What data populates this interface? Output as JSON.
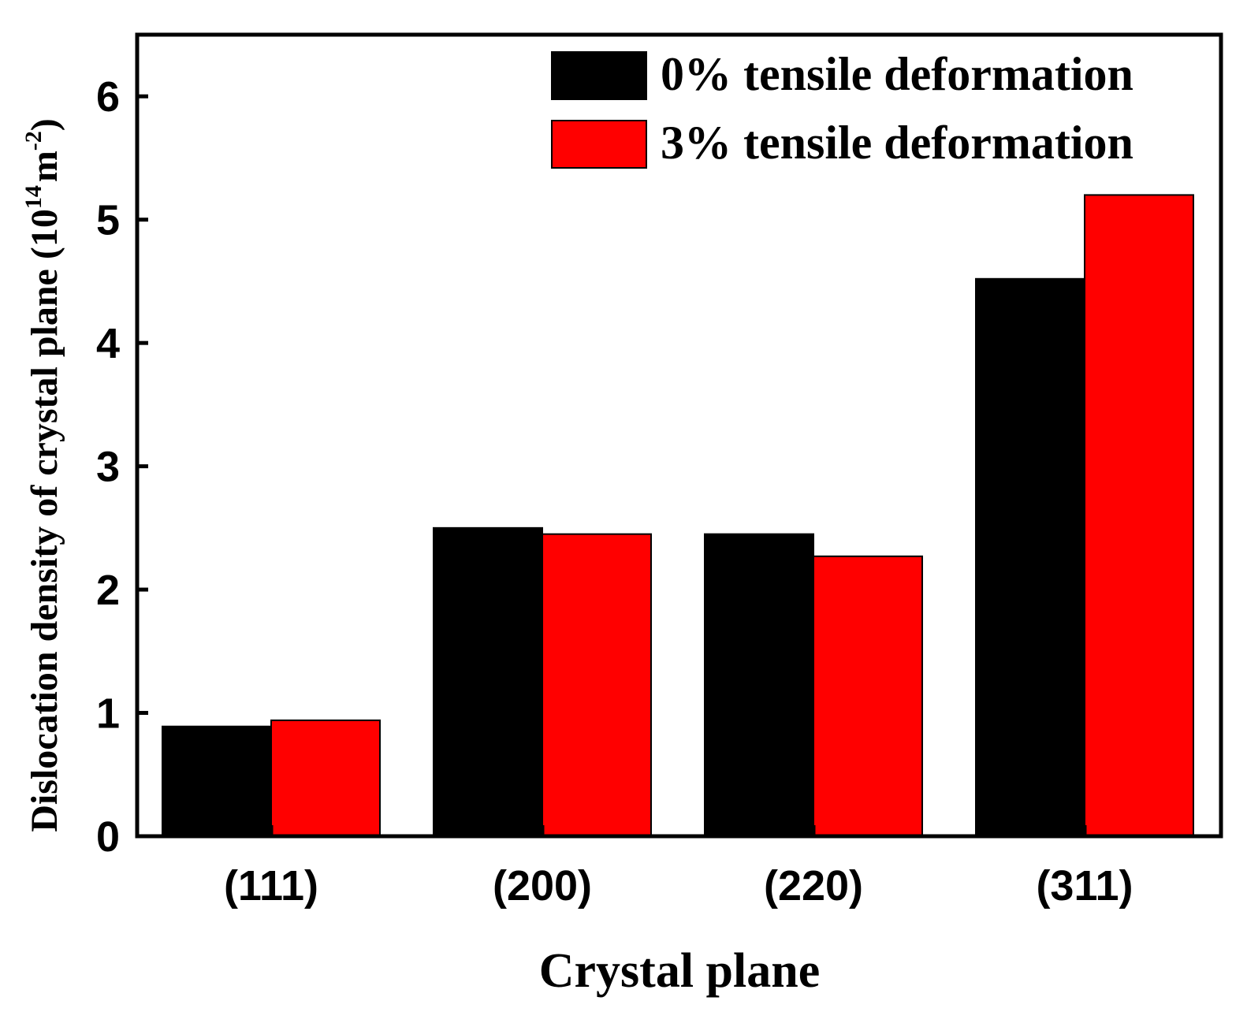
{
  "chart_data": {
    "type": "bar",
    "categories": [
      "(111)",
      "(200)",
      "(220)",
      "(311)"
    ],
    "series": [
      {
        "name": "0% tensile deformation",
        "values": [
          0.89,
          2.5,
          2.45,
          4.52
        ],
        "color": "#000000"
      },
      {
        "name": "3% tensile deformation",
        "values": [
          0.94,
          2.45,
          2.27,
          5.2
        ],
        "color": "#ff0000"
      }
    ],
    "xlabel": "Crystal plane",
    "ylabel": {
      "prefix": "Dislocation density of crystal plane (10",
      "exp1": "14",
      "mid": "m",
      "exp2": "-2",
      "suffix": ")"
    },
    "ylim": [
      0,
      6.5
    ],
    "yticks": [
      0,
      1,
      2,
      3,
      4,
      5,
      6
    ],
    "legend_position": "top-right",
    "grid": false
  }
}
